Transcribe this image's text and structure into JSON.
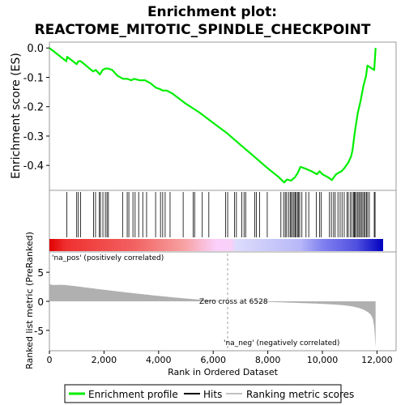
{
  "chart_data": {
    "type": "line",
    "title_line1": "Enrichment plot:",
    "title_line2": "REACTOME_MITOTIC_SPINDLE_CHECKPOINT",
    "ylabel_top": "Enrichment score (ES)",
    "ylabel_bottom": "Ranked list metric (PreRanked)",
    "xlabel": "Rank in Ordered Dataset",
    "xlim": [
      0,
      12700
    ],
    "top_ylim": [
      -0.485,
      0.02
    ],
    "top_yticks": [
      {
        "v": 0.0,
        "label": "0.0"
      },
      {
        "v": -0.1,
        "label": "-0.1"
      },
      {
        "v": -0.2,
        "label": "-0.2"
      },
      {
        "v": -0.3,
        "label": "-0.3"
      },
      {
        "v": -0.4,
        "label": "-0.4"
      }
    ],
    "bottom_ylim": [
      -8.5,
      8.5
    ],
    "bottom_yticks": [
      {
        "v": 5,
        "label": "5"
      },
      {
        "v": 0,
        "label": "0"
      },
      {
        "v": -5,
        "label": "-5"
      }
    ],
    "xticks": [
      {
        "v": 0,
        "label": "0"
      },
      {
        "v": 2000,
        "label": "2,000"
      },
      {
        "v": 4000,
        "label": "4,000"
      },
      {
        "v": 6000,
        "label": "6,000"
      },
      {
        "v": 8000,
        "label": "8,000"
      },
      {
        "v": 10000,
        "label": "10,000"
      },
      {
        "v": 12000,
        "label": "12,000"
      }
    ],
    "n_genes": 11950,
    "zero_cross": 6528,
    "zero_cross_label": "Zero cross at 6528",
    "pos_label": "'na_pos' (positively correlated)",
    "neg_label": "'na_neg' (negatively correlated)",
    "es_curve": [
      [
        0,
        0.0
      ],
      [
        620,
        -0.045
      ],
      [
        650,
        -0.03
      ],
      [
        1000,
        -0.055
      ],
      [
        1060,
        -0.045
      ],
      [
        1150,
        -0.045
      ],
      [
        1600,
        -0.08
      ],
      [
        1700,
        -0.075
      ],
      [
        1850,
        -0.09
      ],
      [
        1950,
        -0.075
      ],
      [
        2050,
        -0.07
      ],
      [
        2150,
        -0.07
      ],
      [
        2300,
        -0.075
      ],
      [
        2500,
        -0.095
      ],
      [
        2700,
        -0.105
      ],
      [
        2850,
        -0.105
      ],
      [
        3000,
        -0.11
      ],
      [
        3100,
        -0.105
      ],
      [
        3300,
        -0.11
      ],
      [
        3500,
        -0.11
      ],
      [
        3700,
        -0.12
      ],
      [
        3900,
        -0.135
      ],
      [
        4050,
        -0.14
      ],
      [
        4150,
        -0.145
      ],
      [
        4300,
        -0.145
      ],
      [
        4500,
        -0.155
      ],
      [
        5000,
        -0.19
      ],
      [
        5500,
        -0.22
      ],
      [
        6000,
        -0.255
      ],
      [
        6500,
        -0.29
      ],
      [
        7000,
        -0.33
      ],
      [
        7500,
        -0.37
      ],
      [
        8000,
        -0.41
      ],
      [
        8400,
        -0.44
      ],
      [
        8600,
        -0.458
      ],
      [
        8700,
        -0.448
      ],
      [
        8850,
        -0.452
      ],
      [
        9000,
        -0.44
      ],
      [
        9100,
        -0.425
      ],
      [
        9200,
        -0.405
      ],
      [
        9350,
        -0.41
      ],
      [
        9600,
        -0.42
      ],
      [
        9800,
        -0.43
      ],
      [
        9900,
        -0.42
      ],
      [
        10000,
        -0.43
      ],
      [
        10200,
        -0.44
      ],
      [
        10350,
        -0.45
      ],
      [
        10500,
        -0.43
      ],
      [
        10700,
        -0.42
      ],
      [
        10800,
        -0.41
      ],
      [
        10950,
        -0.39
      ],
      [
        11050,
        -0.37
      ],
      [
        11100,
        -0.35
      ],
      [
        11200,
        -0.28
      ],
      [
        11300,
        -0.22
      ],
      [
        11400,
        -0.18
      ],
      [
        11500,
        -0.13
      ],
      [
        11600,
        -0.095
      ],
      [
        11650,
        -0.06
      ],
      [
        11900,
        -0.075
      ],
      [
        11950,
        0.0
      ]
    ],
    "hits": [
      640,
      1000,
      1060,
      1140,
      1620,
      1690,
      1830,
      1870,
      1960,
      2050,
      2110,
      2160,
      2680,
      2850,
      2910,
      3060,
      3140,
      3270,
      3420,
      3560,
      3890,
      4070,
      4150,
      4240,
      4420,
      4900,
      5270,
      5320,
      5600,
      5840,
      6450,
      6530,
      6780,
      6850,
      7050,
      7130,
      7190,
      7520,
      7580,
      7700,
      7980,
      8480,
      8580,
      8640,
      8690,
      8760,
      8820,
      8860,
      8910,
      8960,
      9000,
      9040,
      9090,
      9130,
      9170,
      9250,
      9400,
      9500,
      9780,
      9900,
      9960,
      10260,
      10330,
      10410,
      10470,
      10570,
      10650,
      10720,
      10800,
      10900,
      10950,
      11020,
      11080,
      11140,
      11170,
      11200,
      11250,
      11300,
      11340,
      11390,
      11430,
      11480,
      11530,
      11570,
      11620,
      11660,
      11720,
      11900,
      11930
    ],
    "colors": {
      "es_line": "#00ee00",
      "hits": "#000000",
      "metric_fill": "#b0b0b0",
      "pos_text": "#c00000",
      "neg_text": "#0000c0",
      "zero_line": "#a0a0a0",
      "bar_pos_strong": "#e00000",
      "bar_neg_strong": "#0000d0"
    }
  },
  "legend": {
    "items": [
      {
        "label": "Enrichment profile",
        "color": "#00ee00",
        "icon": "green-line"
      },
      {
        "label": "Hits",
        "color": "#000000",
        "icon": "black-line"
      },
      {
        "label": "Ranking metric scores",
        "color": "#c0c0c0",
        "icon": "gray-line"
      }
    ]
  }
}
